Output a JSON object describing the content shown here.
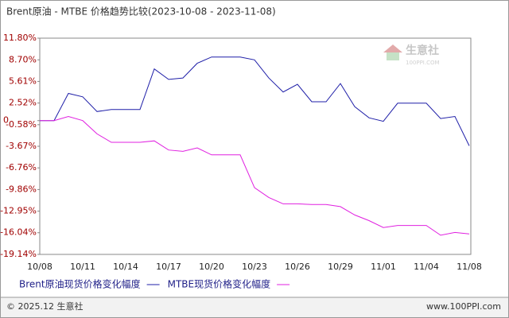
{
  "chart_data": {
    "type": "line",
    "title": "Brent原油 - MTBE 价格趋势比较(2023-10-08 - 2023-11-08)",
    "categories": [
      "10/08",
      null,
      null,
      "10/11",
      null,
      null,
      "10/14",
      null,
      null,
      "10/17",
      null,
      null,
      "10/20",
      null,
      null,
      "10/23",
      null,
      null,
      "10/26",
      null,
      null,
      "10/29",
      null,
      null,
      "11/01",
      null,
      null,
      "11/04",
      null,
      null,
      "11/08"
    ],
    "series": [
      {
        "name": "Brent原油现货价格变化幅度",
        "color": "#1f1fa8",
        "values": [
          0,
          0,
          3.9,
          3.4,
          1.3,
          1.6,
          1.6,
          1.6,
          7.4,
          5.9,
          6.1,
          8.2,
          9.1,
          9.1,
          9.1,
          8.7,
          6.1,
          4.1,
          5.2,
          2.7,
          2.7,
          5.3,
          2.0,
          0.4,
          -0.1,
          2.5,
          2.5,
          2.5,
          0.3,
          0.6,
          -3.6
        ]
      },
      {
        "name": "MTBE现货价格变化幅度",
        "color": "#e020e0",
        "values": [
          0,
          0,
          0.6,
          0,
          -1.9,
          -3.1,
          -3.1,
          -3.1,
          -2.9,
          -4.2,
          -4.4,
          -3.9,
          -4.9,
          -4.9,
          -4.9,
          -9.6,
          -11.0,
          -11.9,
          -11.9,
          -12.0,
          -12.0,
          -12.3,
          -13.5,
          -14.3,
          -15.3,
          -15.0,
          -15.0,
          -15.0,
          -16.4,
          -16.0,
          -16.2
        ]
      }
    ],
    "ylim": [
      -19.14,
      11.8
    ],
    "yticks": [
      {
        "value": 11.8,
        "label": "11.80%"
      },
      {
        "value": 8.7,
        "label": "8.70%"
      },
      {
        "value": 5.61,
        "label": "5.61%"
      },
      {
        "value": 2.52,
        "label": "2.52%"
      },
      0,
      {
        "value": -0.58,
        "label": "-0.58%"
      },
      {
        "value": -3.67,
        "label": "-3.67%"
      },
      {
        "value": -6.76,
        "label": "-6.76%"
      },
      {
        "value": -9.86,
        "label": "-9.86%"
      },
      {
        "value": -12.95,
        "label": "-12.95%"
      },
      {
        "value": -16.04,
        "label": "-16.04%"
      },
      {
        "value": -19.14,
        "label": "-19.14%"
      }
    ],
    "grid": false,
    "watermark": {
      "name": "生意社",
      "site": "100PPI.COM"
    },
    "footer": {
      "copyright": "© 2025.12 生意社",
      "url": "www.100PPI.com"
    }
  }
}
